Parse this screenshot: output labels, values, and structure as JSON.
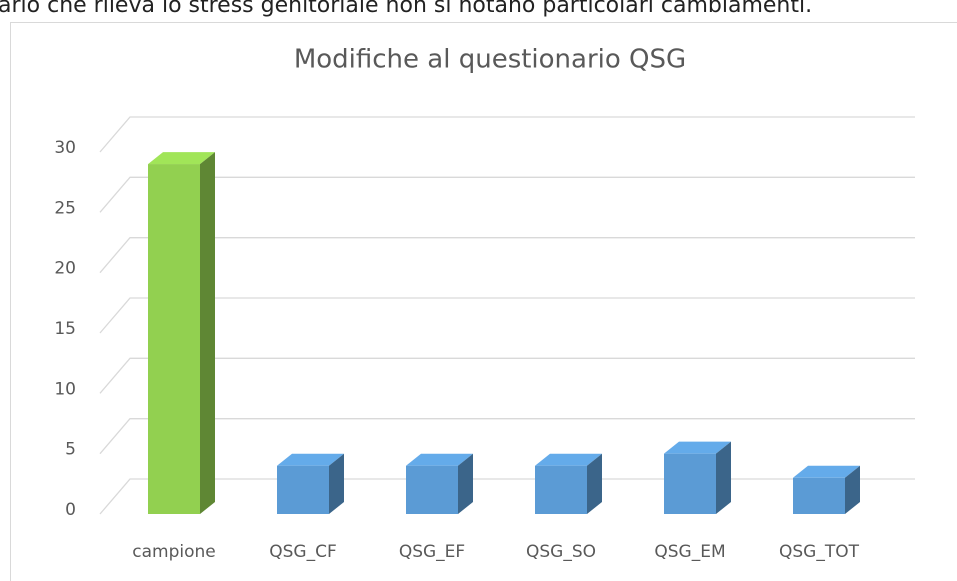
{
  "header_text": "ario che rileva lo stress genitoriale non si notano particolari cambiamenti.",
  "chart_data": {
    "type": "bar3d",
    "title": "Modifiche al questionario QSG",
    "categories": [
      "campione",
      "QSG_CF",
      "QSG_EF",
      "QSG_SO",
      "QSG_EM",
      "QSG_TOT"
    ],
    "values": [
      29,
      4,
      4,
      4,
      5,
      3
    ],
    "colors": [
      "#92d050",
      "#5b9bd5",
      "#5b9bd5",
      "#5b9bd5",
      "#5b9bd5",
      "#5b9bd5"
    ],
    "ylim": [
      0,
      30
    ],
    "yticks": [
      0,
      5,
      10,
      15,
      20,
      25,
      30
    ],
    "grid": true
  }
}
